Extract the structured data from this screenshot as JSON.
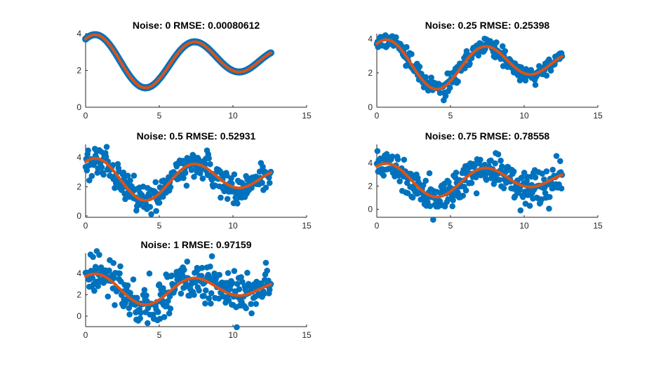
{
  "figure": {
    "colors": {
      "points": "#0072BD",
      "fit": "#D95319",
      "axes": "#262626",
      "background": "#ffffff"
    }
  },
  "chart_data": [
    {
      "type": "scatter",
      "title": "Noise: 0 RMSE: 0.00080612",
      "noise": 0,
      "rmse": 0.00080612,
      "xlim": [
        0,
        15
      ],
      "ylim": [
        0,
        4
      ],
      "xticks": [
        0,
        5,
        10,
        15
      ],
      "yticks": [
        0,
        2,
        4
      ],
      "series": [
        {
          "kind": "points",
          "x_range": [
            0,
            12.57
          ],
          "count": 300,
          "model": "2.5 + 0.5*sin(2x/3+pi/2) + sin(x+pi/4)"
        },
        {
          "kind": "fit",
          "x_range": [
            0,
            12.57
          ]
        }
      ]
    },
    {
      "type": "scatter",
      "title": "Noise: 0.25 RMSE: 0.25398",
      "noise": 0.25,
      "rmse": 0.25398,
      "xlim": [
        0,
        15
      ],
      "ylim": [
        0,
        4.3
      ],
      "xticks": [
        0,
        5,
        10,
        15
      ],
      "yticks": [
        0,
        2,
        4
      ],
      "series": [
        {
          "kind": "points",
          "x_range": [
            0,
            12.57
          ],
          "count": 300
        },
        {
          "kind": "fit",
          "x_range": [
            0,
            12.57
          ]
        }
      ]
    },
    {
      "type": "scatter",
      "title": "Noise: 0.5 RMSE: 0.52931",
      "noise": 0.5,
      "rmse": 0.52931,
      "xlim": [
        0,
        15
      ],
      "ylim": [
        -0.1,
        4.9
      ],
      "xticks": [
        0,
        5,
        10,
        15
      ],
      "yticks": [
        0,
        2,
        4
      ],
      "series": [
        {
          "kind": "points",
          "x_range": [
            0,
            12.57
          ],
          "count": 300
        },
        {
          "kind": "fit",
          "x_range": [
            0,
            12.57
          ]
        }
      ]
    },
    {
      "type": "scatter",
      "title": "Noise: 0.75 RMSE: 0.78558",
      "noise": 0.75,
      "rmse": 0.78558,
      "xlim": [
        0,
        15
      ],
      "ylim": [
        -0.7,
        5.6
      ],
      "xticks": [
        0,
        5,
        10,
        15
      ],
      "yticks": [
        0,
        2,
        4
      ],
      "series": [
        {
          "kind": "points",
          "x_range": [
            0,
            12.57
          ],
          "count": 300
        },
        {
          "kind": "fit",
          "x_range": [
            0,
            12.57
          ]
        }
      ]
    },
    {
      "type": "scatter",
      "title": "Noise: 1 RMSE: 0.97159",
      "noise": 1,
      "rmse": 0.97159,
      "xlim": [
        0,
        15
      ],
      "ylim": [
        -1,
        5.9
      ],
      "xticks": [
        0,
        5,
        10,
        15
      ],
      "yticks": [
        0,
        2,
        4
      ],
      "series": [
        {
          "kind": "points",
          "x_range": [
            0,
            12.57
          ],
          "count": 300
        },
        {
          "kind": "fit",
          "x_range": [
            0,
            12.57
          ]
        }
      ]
    }
  ]
}
